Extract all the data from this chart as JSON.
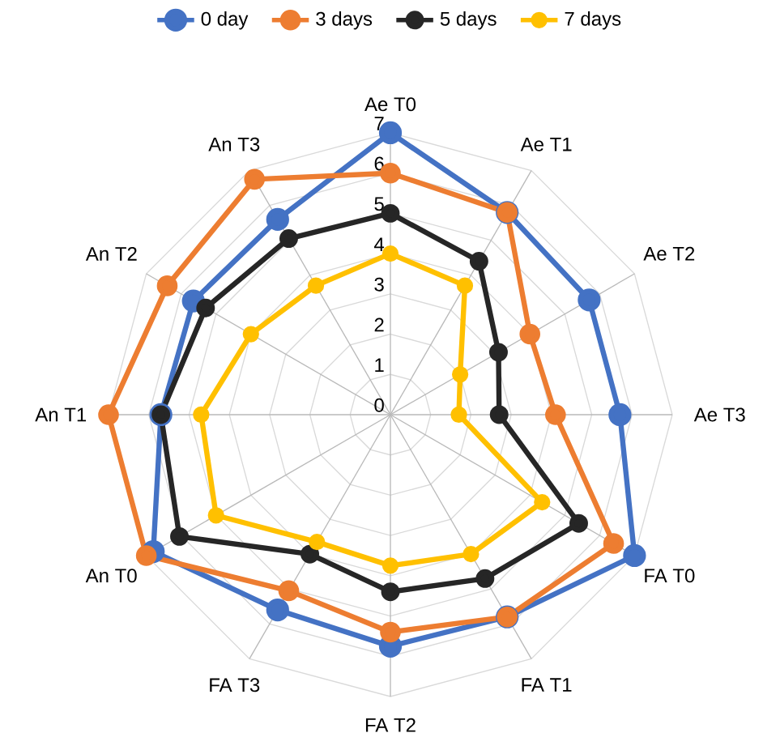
{
  "chart_data": {
    "type": "radar",
    "categories": [
      "Ae T0",
      "Ae T1",
      "Ae T2",
      "Ae T3",
      "FA T0",
      "FA T1",
      "FA T2",
      "FA T3",
      "An T0",
      "An T1",
      "An T2",
      "An T3"
    ],
    "series": [
      {
        "name": "0 day",
        "color": "#4472c4",
        "values": [
          7,
          5.8,
          5.7,
          5.7,
          7,
          5.8,
          5.75,
          5.6,
          6.8,
          5.7,
          5.65,
          5.6
        ]
      },
      {
        "name": "3 days",
        "color": "#ed7d31",
        "values": [
          6,
          5.8,
          4,
          4.1,
          6.4,
          5.8,
          5.4,
          5.05,
          7,
          7,
          6.4,
          6.75
        ]
      },
      {
        "name": "5 days",
        "color": "#262626",
        "values": [
          5,
          4.4,
          3.1,
          2.7,
          5.4,
          4.7,
          4.4,
          4,
          6.05,
          5.7,
          5.3,
          5.05
        ]
      },
      {
        "name": "7 days",
        "color": "#ffc000",
        "values": [
          4,
          3.7,
          2,
          1.7,
          4.35,
          4,
          3.75,
          3.65,
          5,
          4.7,
          4,
          3.7
        ]
      }
    ],
    "ylim": [
      0,
      7
    ],
    "yticks": [
      0,
      1,
      2,
      3,
      4,
      5,
      6,
      7
    ],
    "grid": true,
    "legend": "top",
    "marker": "circle"
  }
}
